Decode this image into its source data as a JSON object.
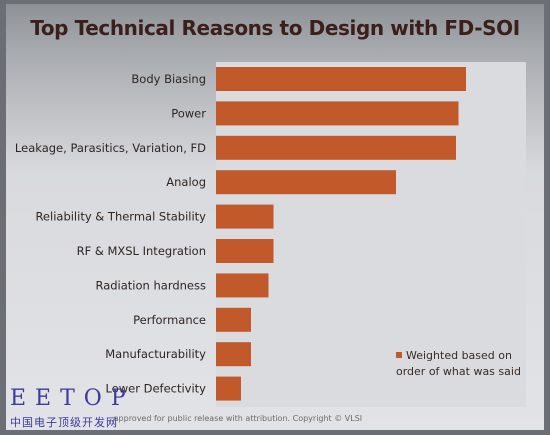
{
  "chart_data": {
    "type": "bar",
    "orientation": "horizontal",
    "title": "Top Technical Reasons to Design with FD-SOI",
    "categories": [
      "Body Biasing",
      "Power",
      "Leakage, Parasitics, Variation, FD",
      "Analog",
      "Reliability & Thermal Stability",
      "RF & MXSL Integration",
      "Radiation hardness",
      "Performance",
      "Manufacturability",
      "Lower Defectivity"
    ],
    "series": [
      {
        "name": "Weighted based on order of what was said",
        "values": [
          100,
          97,
          96,
          72,
          23,
          23,
          21,
          14,
          14,
          10
        ]
      }
    ],
    "legend_position": "bottom-right",
    "bar_color": "#c2592a",
    "grid": false
  },
  "legend": {
    "text": "Weighted based on order of what was said"
  },
  "footer": {
    "text": "...approved for public release with attribution. Copyright © VLSI"
  },
  "watermark": {
    "latin": "EETOP",
    "cn": "中国电子顶级开发网"
  }
}
